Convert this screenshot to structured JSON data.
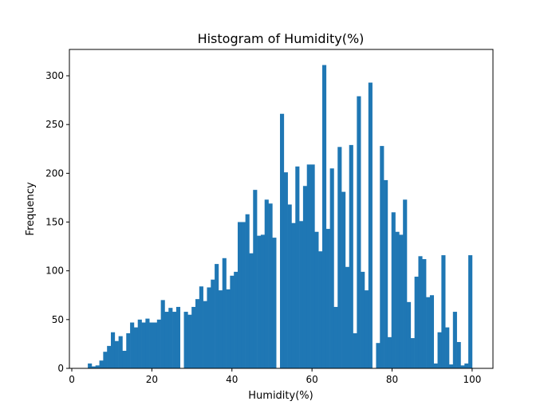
{
  "chart_data": {
    "type": "bar",
    "title": "Histogram of Humidity(%)",
    "xlabel": "Humidity(%)",
    "ylabel": "Frequency",
    "xlim": [
      -0.6,
      105.2
    ],
    "ylim": [
      0,
      327
    ],
    "xticks": [
      0,
      20,
      40,
      60,
      80,
      100
    ],
    "yticks": [
      0,
      50,
      100,
      150,
      200,
      250,
      300
    ],
    "grid": false,
    "bar_color": "#1f77b4",
    "bin_width": 0.96,
    "bin_start": 4,
    "values": [
      5,
      2,
      3,
      8,
      17,
      23,
      37,
      28,
      33,
      18,
      36,
      47,
      42,
      50,
      47,
      51,
      47,
      47,
      50,
      70,
      58,
      62,
      58,
      63,
      0,
      58,
      55,
      63,
      71,
      84,
      69,
      83,
      91,
      107,
      80,
      113,
      81,
      95,
      99,
      150,
      150,
      158,
      118,
      183,
      136,
      137,
      173,
      169,
      134,
      0,
      261,
      201,
      168,
      149,
      207,
      151,
      187,
      209,
      209,
      140,
      120,
      311,
      143,
      205,
      63,
      227,
      181,
      104,
      229,
      36,
      279,
      99,
      80,
      293,
      0,
      26,
      228,
      193,
      32,
      160,
      140,
      137,
      173,
      68,
      31,
      94,
      115,
      112,
      73,
      75,
      5,
      37,
      116,
      42,
      4,
      58,
      27,
      3,
      5,
      116
    ]
  }
}
